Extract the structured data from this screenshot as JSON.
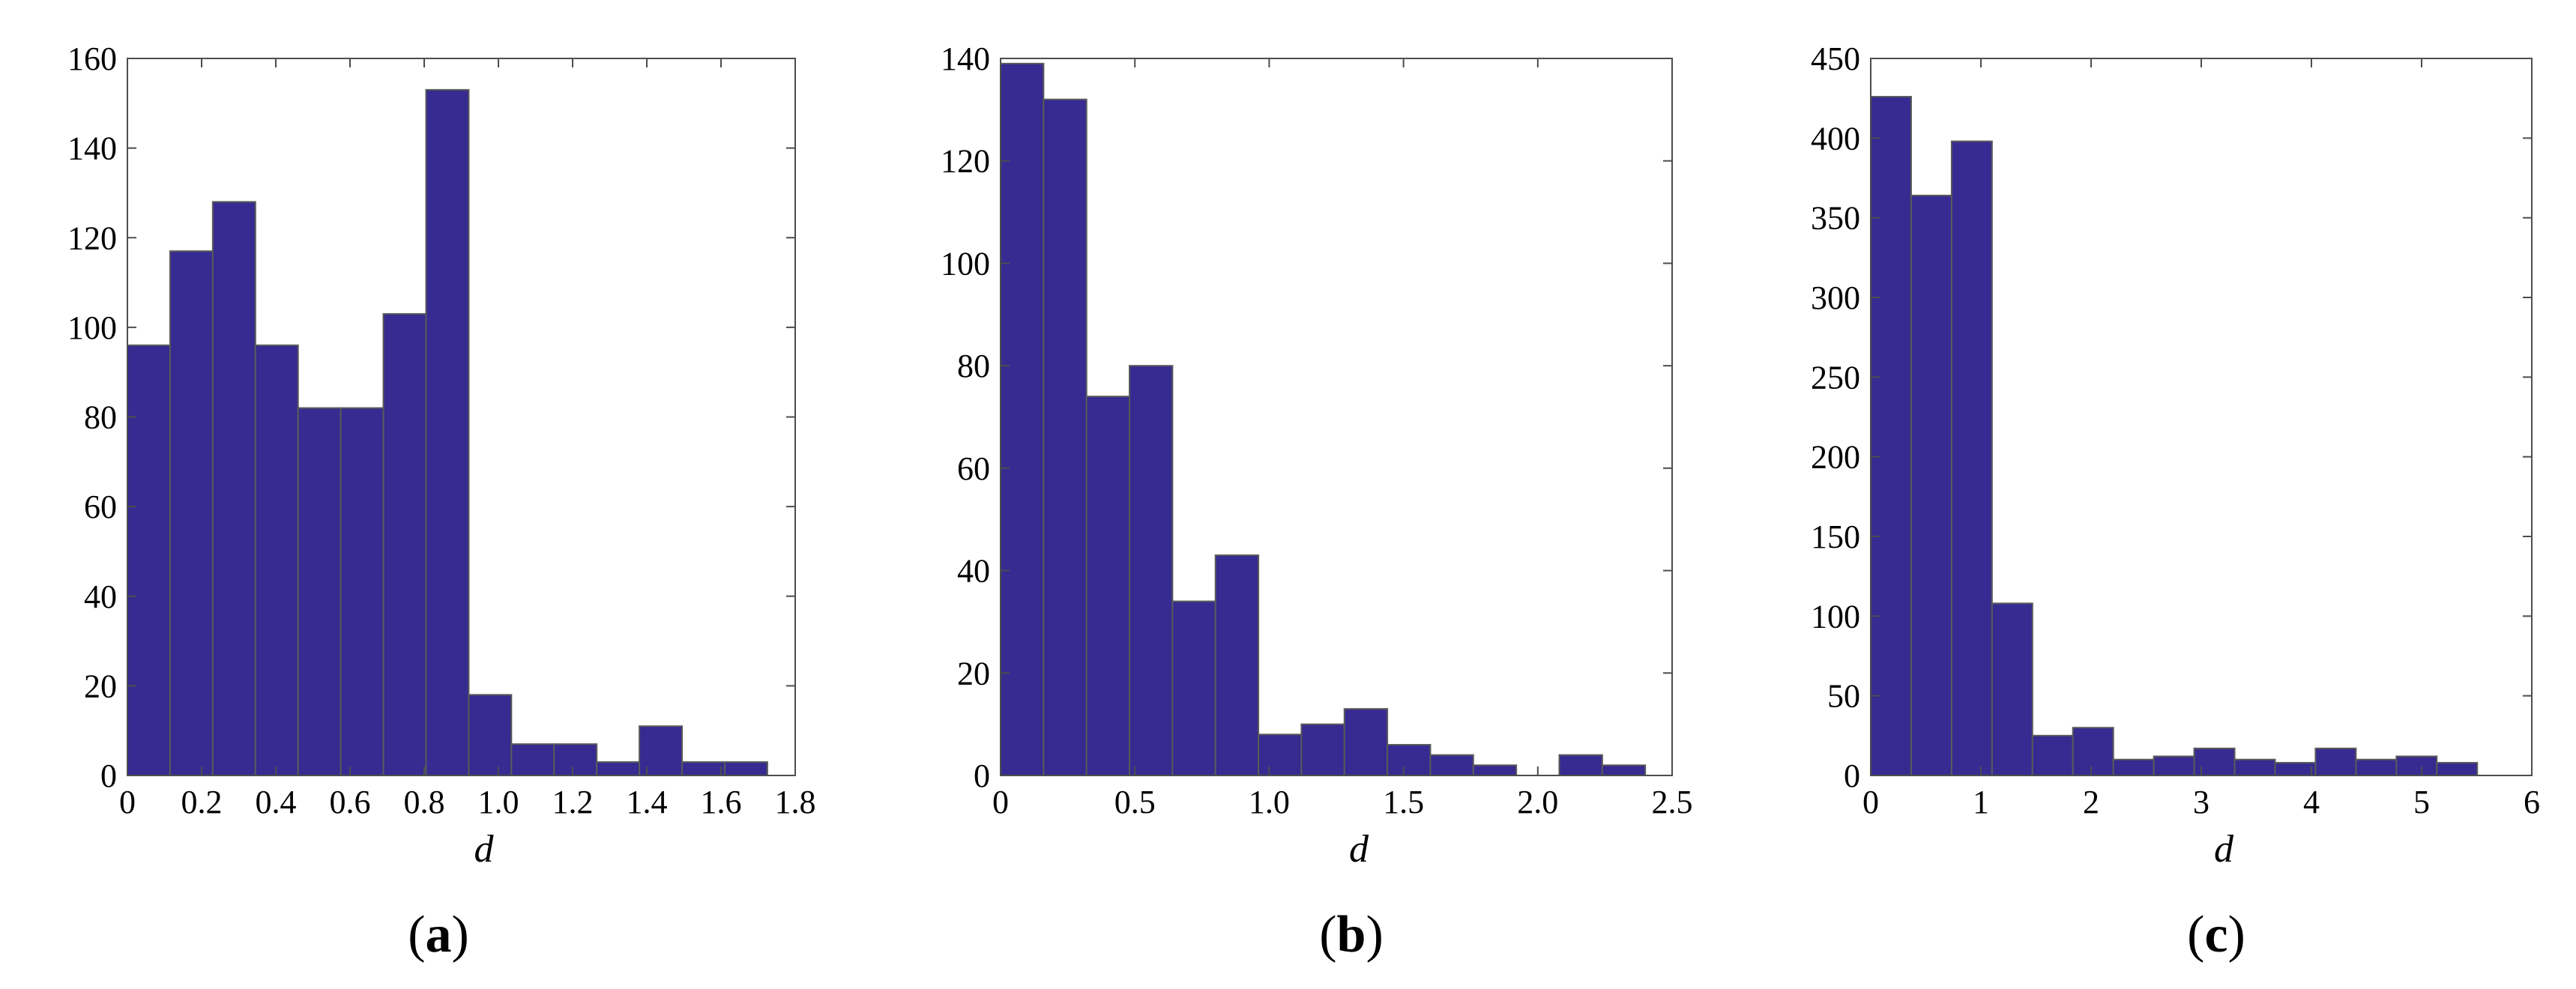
{
  "chart_data": [
    {
      "type": "bar",
      "panel": "a",
      "title": "",
      "xlabel": "d",
      "ylabel": "",
      "xlim": [
        0,
        1.8
      ],
      "ylim": [
        0,
        160
      ],
      "xticks": [
        0,
        0.2,
        0.4,
        0.6,
        0.8,
        1.0,
        1.2,
        1.4,
        1.6,
        1.8
      ],
      "xtick_labels": [
        "0",
        "0.2",
        "0.4",
        "0.6",
        "0.8",
        "1.0",
        "1.2",
        "1.4",
        "1.6",
        "1.8"
      ],
      "yticks": [
        0,
        20,
        40,
        60,
        80,
        100,
        120,
        140,
        160
      ],
      "ytick_labels": [
        "0",
        "20",
        "40",
        "60",
        "80",
        "100",
        "120",
        "140",
        "160"
      ],
      "bin_edges": [
        0,
        0.115,
        0.23,
        0.345,
        0.46,
        0.575,
        0.69,
        0.805,
        0.92,
        1.035,
        1.15,
        1.265,
        1.38,
        1.495,
        1.61,
        1.725
      ],
      "values": [
        96,
        117,
        128,
        96,
        82,
        82,
        103,
        153,
        18,
        7,
        7,
        3,
        11,
        3,
        3
      ],
      "bar_color": "#372a91"
    },
    {
      "type": "bar",
      "panel": "b",
      "title": "",
      "xlabel": "d",
      "ylabel": "",
      "xlim": [
        0,
        2.5
      ],
      "ylim": [
        0,
        140
      ],
      "xticks": [
        0,
        0.5,
        1.0,
        1.5,
        2.0,
        2.5
      ],
      "xtick_labels": [
        "0",
        "0.5",
        "1.0",
        "1.5",
        "2.0",
        "2.5"
      ],
      "yticks": [
        0,
        20,
        40,
        60,
        80,
        100,
        120,
        140
      ],
      "ytick_labels": [
        "0",
        "20",
        "40",
        "60",
        "80",
        "100",
        "120",
        "140"
      ],
      "bin_edges": [
        0,
        0.16,
        0.32,
        0.48,
        0.64,
        0.8,
        0.96,
        1.12,
        1.28,
        1.44,
        1.6,
        1.76,
        1.92,
        2.08,
        2.24,
        2.4
      ],
      "values": [
        139,
        132,
        74,
        80,
        34,
        43,
        8,
        10,
        13,
        6,
        4,
        2,
        0,
        4,
        2
      ],
      "bar_color": "#372a91"
    },
    {
      "type": "bar",
      "panel": "c",
      "title": "",
      "xlabel": "d",
      "ylabel": "",
      "xlim": [
        0,
        6
      ],
      "ylim": [
        0,
        450
      ],
      "xticks": [
        0,
        1,
        2,
        3,
        4,
        5,
        6
      ],
      "xtick_labels": [
        "0",
        "1",
        "2",
        "3",
        "4",
        "5",
        "6"
      ],
      "yticks": [
        0,
        50,
        100,
        150,
        200,
        250,
        300,
        350,
        400,
        450
      ],
      "ytick_labels": [
        "0",
        "50",
        "100",
        "150",
        "200",
        "250",
        "300",
        "350",
        "400",
        "450"
      ],
      "bin_edges": [
        0,
        0.367,
        0.734,
        1.101,
        1.468,
        1.835,
        2.202,
        2.569,
        2.936,
        3.303,
        3.67,
        4.037,
        4.404,
        4.771,
        5.138,
        5.505
      ],
      "values": [
        426,
        364,
        398,
        108,
        25,
        30,
        10,
        12,
        17,
        10,
        8,
        17,
        10,
        12,
        8
      ],
      "bar_color": "#372a91"
    }
  ],
  "panel_labels": [
    {
      "open": "(",
      "letter": "a",
      "close": ")"
    },
    {
      "open": "(",
      "letter": "b",
      "close": ")"
    },
    {
      "open": "(",
      "letter": "c",
      "close": ")"
    }
  ]
}
